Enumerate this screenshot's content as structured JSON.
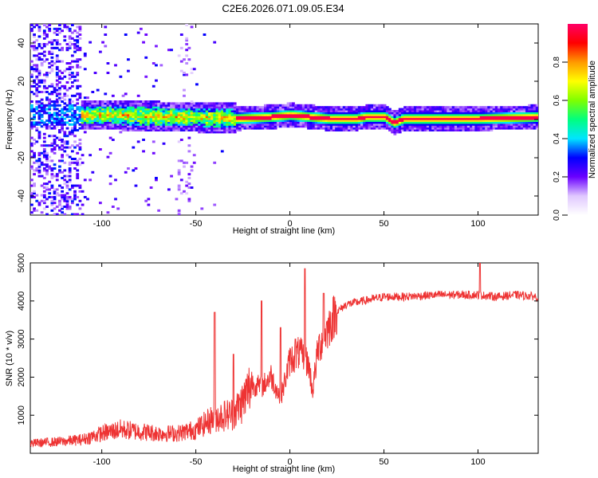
{
  "title": "C2E6.2026.071.09.05.E34",
  "chart_data": [
    {
      "type": "heatmap",
      "xlabel": "Height of straight line (km)",
      "ylabel": "Frequency (Hz)",
      "xlim": [
        -138,
        132
      ],
      "ylim": [
        -50,
        50
      ],
      "xticks": [
        -100,
        -50,
        0,
        50,
        100
      ],
      "yticks": [
        -40,
        -20,
        0,
        20,
        40
      ],
      "colorbar": {
        "label": "Normalized spectral amplitude",
        "range": [
          0,
          1
        ],
        "ticks": [
          "0.0",
          "0.2",
          "0.4",
          "0.6",
          "0.8"
        ],
        "tick_values": [
          0.0,
          0.2,
          0.4,
          0.6,
          0.8
        ],
        "colors": [
          "#ffffff",
          "#e0c8ff",
          "#6a00ff",
          "#0000ff",
          "#00e5ff",
          "#00ff7f",
          "#7fff00",
          "#ffff00",
          "#ff9900",
          "#ff0000",
          "#ff0066"
        ]
      },
      "ridge_center_hz": [
        {
          "x": -110,
          "y": 2
        },
        {
          "x": -90,
          "y": 2
        },
        {
          "x": -70,
          "y": 1
        },
        {
          "x": -50,
          "y": 1
        },
        {
          "x": -30,
          "y": 0
        },
        {
          "x": -10,
          "y": 1
        },
        {
          "x": 0,
          "y": 2
        },
        {
          "x": 20,
          "y": 0
        },
        {
          "x": 35,
          "y": 0
        },
        {
          "x": 40,
          "y": 1
        },
        {
          "x": 50,
          "y": 1
        },
        {
          "x": 55,
          "y": -2
        },
        {
          "x": 60,
          "y": 0
        },
        {
          "x": 100,
          "y": 0
        },
        {
          "x": 132,
          "y": 1
        }
      ]
    },
    {
      "type": "line",
      "xlabel": "Height of straight line (km)",
      "ylabel": "SNR (10 * v/v)",
      "xlim": [
        -138,
        132
      ],
      "ylim": [
        0,
        5000
      ],
      "xticks": [
        -100,
        -50,
        0,
        50,
        100
      ],
      "yticks": [
        1000,
        2000,
        3000,
        4000,
        5000
      ],
      "series": [
        {
          "name": "SNR",
          "color": "#ee3333",
          "x": [
            -138,
            -120,
            -110,
            -100,
            -90,
            -80,
            -70,
            -60,
            -50,
            -40,
            -30,
            -25,
            -20,
            -15,
            -10,
            -5,
            0,
            5,
            10,
            12,
            15,
            20,
            25,
            30,
            40,
            50,
            60,
            80,
            100,
            110,
            120,
            132
          ],
          "y": [
            250,
            300,
            350,
            500,
            600,
            550,
            500,
            500,
            600,
            900,
            1000,
            1300,
            1800,
            1700,
            2000,
            1400,
            2400,
            2600,
            2300,
            1600,
            2700,
            3200,
            3700,
            3900,
            4000,
            4100,
            4100,
            4150,
            4150,
            4100,
            4150,
            4100
          ],
          "spikes": [
            {
              "x": -40,
              "y": 3700
            },
            {
              "x": -30,
              "y": 2600
            },
            {
              "x": -15,
              "y": 4000
            },
            {
              "x": -5,
              "y": 3300
            },
            {
              "x": 8,
              "y": 4850
            },
            {
              "x": 3,
              "y": 3000
            },
            {
              "x": 18,
              "y": 4200
            },
            {
              "x": 101,
              "y": 5000
            }
          ]
        }
      ]
    }
  ]
}
